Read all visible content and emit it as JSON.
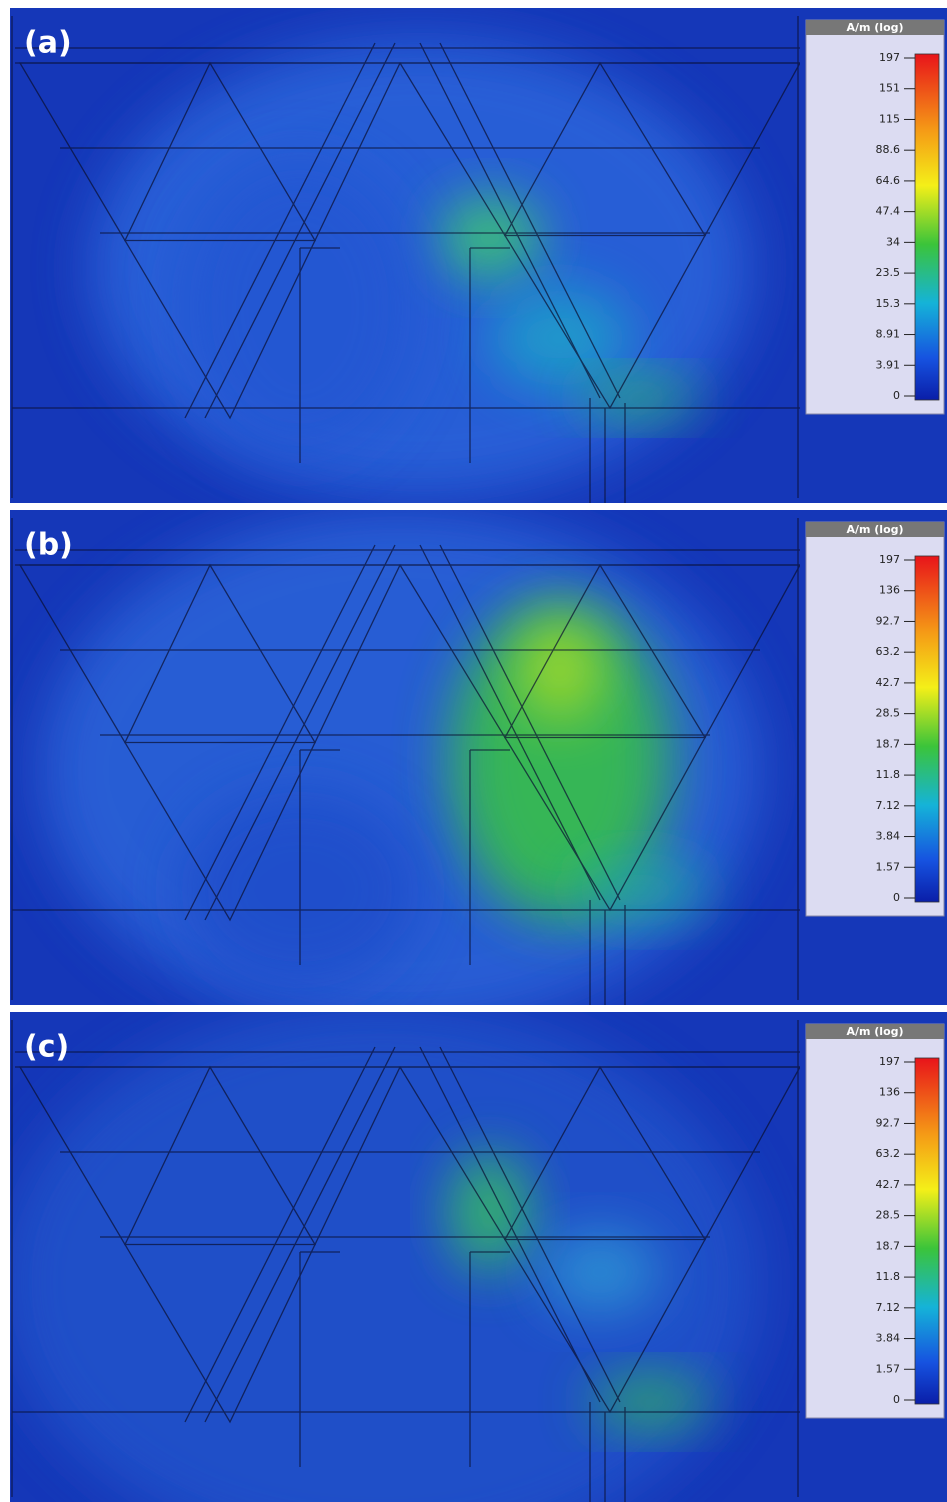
{
  "panels": [
    {
      "label": "(a)",
      "colorbar": {
        "title": "A/m (log)",
        "ticks": [
          "197",
          "151",
          "115",
          "88.6",
          "64.6",
          "47.4",
          "34",
          "23.5",
          "15.3",
          "8.91",
          "3.91",
          "0"
        ]
      }
    },
    {
      "label": "(b)",
      "colorbar": {
        "title": "A/m (log)",
        "ticks": [
          "197",
          "136",
          "92.7",
          "63.2",
          "42.7",
          "28.5",
          "18.7",
          "11.8",
          "7.12",
          "3.84",
          "1.57",
          "0"
        ]
      }
    },
    {
      "label": "(c)",
      "colorbar": {
        "title": "A/m (log)",
        "ticks": [
          "197",
          "136",
          "92.7",
          "63.2",
          "42.7",
          "28.5",
          "18.7",
          "11.8",
          "7.12",
          "3.84",
          "1.57",
          "0"
        ]
      }
    }
  ]
}
